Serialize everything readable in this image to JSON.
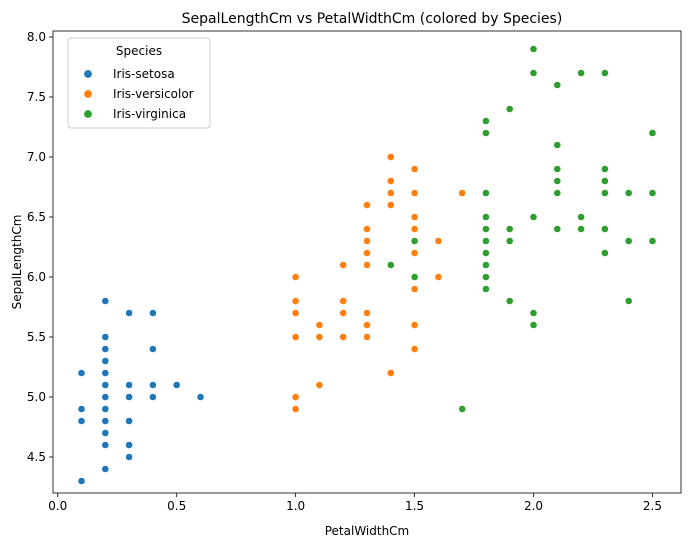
{
  "chart_data": {
    "type": "scatter",
    "title": "SepalLengthCm vs PetalWidthCm (colored by Species)",
    "xlabel": "PetalWidthCm",
    "ylabel": "SepalLengthCm",
    "xlim": [
      -0.02,
      2.62
    ],
    "ylim": [
      4.2,
      8.05
    ],
    "xticks": [
      0.0,
      0.5,
      1.0,
      1.5,
      2.0,
      2.5
    ],
    "xtick_labels": [
      "0.0",
      "0.5",
      "1.0",
      "1.5",
      "2.0",
      "2.5"
    ],
    "yticks": [
      4.5,
      5.0,
      5.5,
      6.0,
      6.5,
      7.0,
      7.5,
      8.0
    ],
    "ytick_labels": [
      "4.5",
      "5.0",
      "5.5",
      "6.0",
      "6.5",
      "7.0",
      "7.5",
      "8.0"
    ],
    "grid": false,
    "legend": {
      "title": "Species",
      "placement": "upper-left"
    },
    "series": [
      {
        "name": "Iris-setosa",
        "color": "#1f77b4",
        "points": [
          [
            0.1,
            4.3
          ],
          [
            0.1,
            4.8
          ],
          [
            0.1,
            4.9
          ],
          [
            0.1,
            5.2
          ],
          [
            0.2,
            4.4
          ],
          [
            0.2,
            4.6
          ],
          [
            0.2,
            4.7
          ],
          [
            0.2,
            4.8
          ],
          [
            0.2,
            4.9
          ],
          [
            0.2,
            5.0
          ],
          [
            0.2,
            5.1
          ],
          [
            0.2,
            5.2
          ],
          [
            0.2,
            5.3
          ],
          [
            0.2,
            5.4
          ],
          [
            0.2,
            5.5
          ],
          [
            0.2,
            5.8
          ],
          [
            0.3,
            4.5
          ],
          [
            0.3,
            4.6
          ],
          [
            0.3,
            4.8
          ],
          [
            0.3,
            5.0
          ],
          [
            0.3,
            5.1
          ],
          [
            0.3,
            5.7
          ],
          [
            0.4,
            5.0
          ],
          [
            0.4,
            5.1
          ],
          [
            0.4,
            5.4
          ],
          [
            0.4,
            5.7
          ],
          [
            0.5,
            5.1
          ],
          [
            0.6,
            5.0
          ]
        ]
      },
      {
        "name": "Iris-versicolor",
        "color": "#ff7f0e",
        "points": [
          [
            1.0,
            4.9
          ],
          [
            1.0,
            5.0
          ],
          [
            1.0,
            5.5
          ],
          [
            1.0,
            5.7
          ],
          [
            1.0,
            5.8
          ],
          [
            1.0,
            6.0
          ],
          [
            1.1,
            5.1
          ],
          [
            1.1,
            5.5
          ],
          [
            1.1,
            5.6
          ],
          [
            1.2,
            5.5
          ],
          [
            1.2,
            5.7
          ],
          [
            1.2,
            5.8
          ],
          [
            1.2,
            6.1
          ],
          [
            1.3,
            5.5
          ],
          [
            1.3,
            5.6
          ],
          [
            1.3,
            5.7
          ],
          [
            1.3,
            6.1
          ],
          [
            1.3,
            6.2
          ],
          [
            1.3,
            6.3
          ],
          [
            1.3,
            6.4
          ],
          [
            1.3,
            6.6
          ],
          [
            1.4,
            5.2
          ],
          [
            1.4,
            6.6
          ],
          [
            1.4,
            6.7
          ],
          [
            1.4,
            6.8
          ],
          [
            1.4,
            7.0
          ],
          [
            1.5,
            5.4
          ],
          [
            1.5,
            5.6
          ],
          [
            1.5,
            5.9
          ],
          [
            1.5,
            6.2
          ],
          [
            1.5,
            6.3
          ],
          [
            1.5,
            6.4
          ],
          [
            1.5,
            6.5
          ],
          [
            1.5,
            6.7
          ],
          [
            1.5,
            6.9
          ],
          [
            1.6,
            6.0
          ],
          [
            1.6,
            6.3
          ],
          [
            1.7,
            6.7
          ]
        ]
      },
      {
        "name": "Iris-virginica",
        "color": "#2ca02c",
        "points": [
          [
            1.4,
            6.1
          ],
          [
            1.5,
            6.0
          ],
          [
            1.5,
            6.3
          ],
          [
            1.7,
            4.9
          ],
          [
            1.8,
            5.9
          ],
          [
            1.8,
            6.0
          ],
          [
            1.8,
            6.1
          ],
          [
            1.8,
            6.2
          ],
          [
            1.8,
            6.3
          ],
          [
            1.8,
            6.4
          ],
          [
            1.8,
            6.5
          ],
          [
            1.8,
            6.7
          ],
          [
            1.8,
            7.2
          ],
          [
            1.8,
            7.3
          ],
          [
            1.9,
            5.8
          ],
          [
            1.9,
            6.3
          ],
          [
            1.9,
            6.4
          ],
          [
            1.9,
            7.4
          ],
          [
            2.0,
            5.6
          ],
          [
            2.0,
            5.7
          ],
          [
            2.0,
            6.5
          ],
          [
            2.0,
            7.7
          ],
          [
            2.0,
            7.9
          ],
          [
            2.1,
            6.4
          ],
          [
            2.1,
            6.7
          ],
          [
            2.1,
            6.8
          ],
          [
            2.1,
            6.9
          ],
          [
            2.1,
            7.1
          ],
          [
            2.1,
            7.6
          ],
          [
            2.2,
            6.4
          ],
          [
            2.2,
            6.5
          ],
          [
            2.2,
            7.7
          ],
          [
            2.3,
            6.2
          ],
          [
            2.3,
            6.4
          ],
          [
            2.3,
            6.7
          ],
          [
            2.3,
            6.8
          ],
          [
            2.3,
            6.9
          ],
          [
            2.3,
            7.7
          ],
          [
            2.4,
            5.8
          ],
          [
            2.4,
            6.3
          ],
          [
            2.4,
            6.7
          ],
          [
            2.5,
            6.3
          ],
          [
            2.5,
            6.7
          ],
          [
            2.5,
            7.2
          ]
        ]
      }
    ]
  }
}
